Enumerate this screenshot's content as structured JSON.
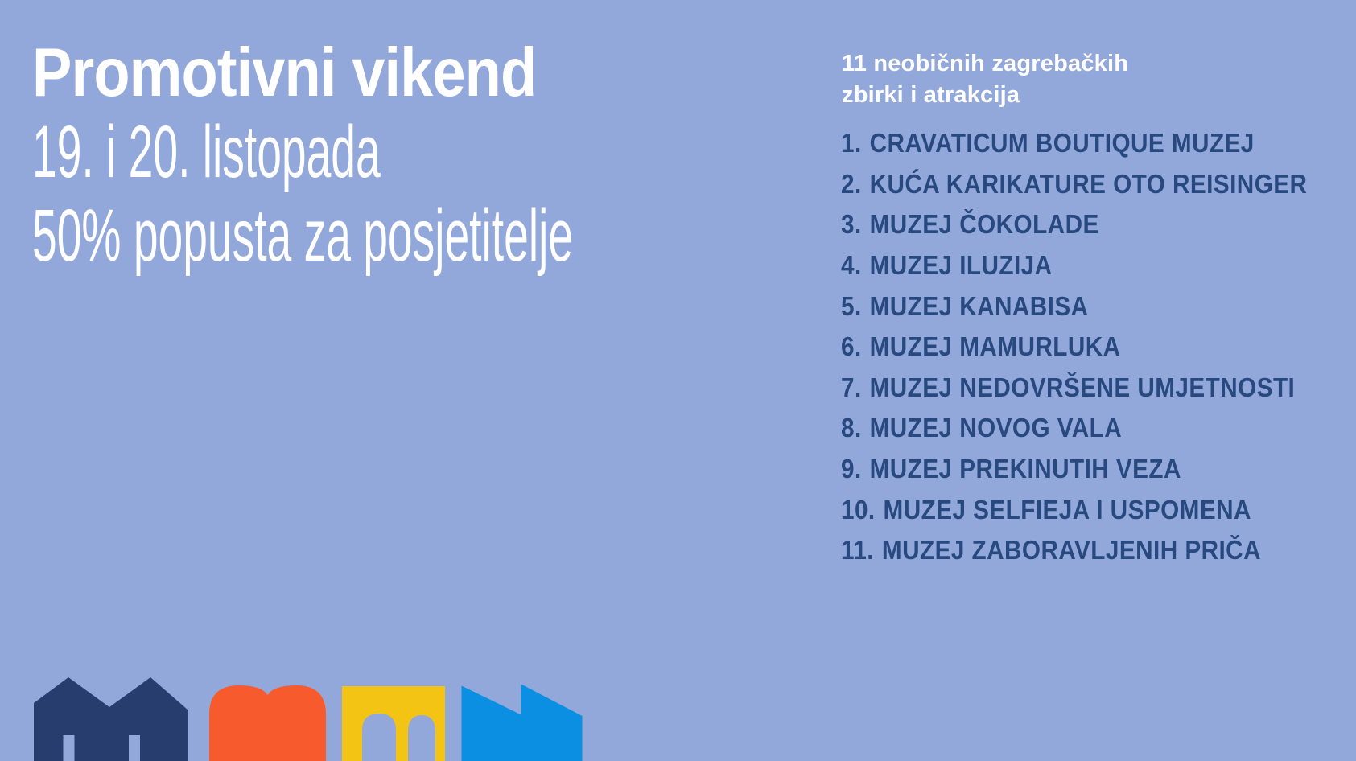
{
  "headline": {
    "title": "Promotivni vikend",
    "dates": "19. i 20. listopada",
    "offer": "50% popusta za posjetitelje"
  },
  "list": {
    "heading_line1": "11 neobičnih zagrebačkih",
    "heading_line2": "zbirki i atrakcija",
    "items": [
      {
        "number": "1.",
        "name": "CRAVATICUM BOUTIQUE MUZEJ"
      },
      {
        "number": "2.",
        "name": "KUĆA KARIKATURE OTO REISINGER"
      },
      {
        "number": "3.",
        "name": "MUZEJ ČOKOLADE"
      },
      {
        "number": "4.",
        "name": "MUZEJ ILUZIJA"
      },
      {
        "number": "5.",
        "name": "MUZEJ KANABISA"
      },
      {
        "number": "6.",
        "name": "MUZEJ MAMURLUKA"
      },
      {
        "number": "7.",
        "name": "MUZEJ NEDOVRŠENE UMJETNOSTI"
      },
      {
        "number": "8.",
        "name": "MUZEJ NOVOG VALA"
      },
      {
        "number": "9.",
        "name": "MUZEJ PREKINUTIH VEZA"
      },
      {
        "number": "10.",
        "name": "MUZEJ SELFIEJA I USPOMENA"
      },
      {
        "number": "11.",
        "name": "MUZEJ ZABORAVLJENIH PRIČA"
      }
    ]
  },
  "logo": {
    "shapes": [
      "house-icon",
      "twin-arches-icon",
      "arched-gate-icon",
      "factory-icon"
    ]
  },
  "colors": {
    "background": "#93a8da",
    "headline_text": "#ffffff",
    "list_heading_text": "#ffffff",
    "list_item_text": "#27497f",
    "logo_navy": "#263d6d",
    "logo_orange": "#f75b2d",
    "logo_yellow": "#f3c413",
    "logo_blue": "#0a8fe2"
  }
}
